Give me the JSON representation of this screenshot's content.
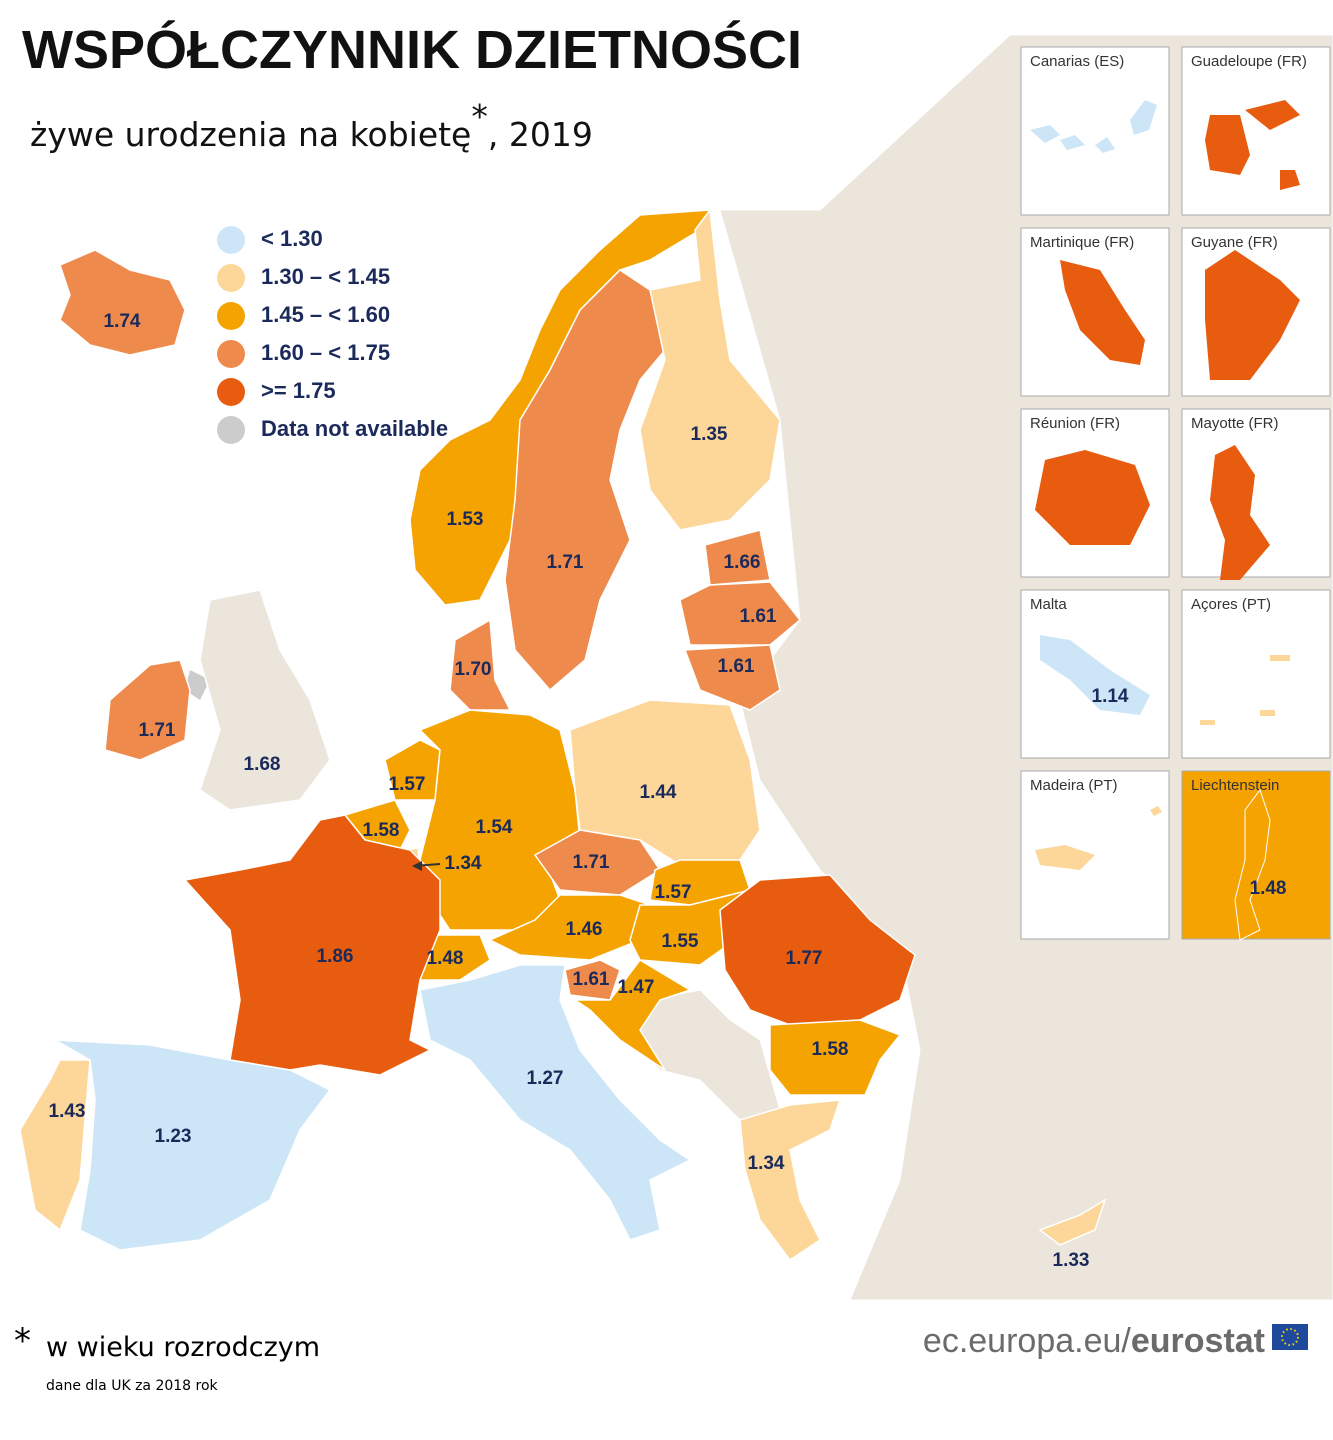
{
  "header": {
    "title": "WSPÓŁCZYNNIK DZIETNOŚCI",
    "subtitle": "żywe urodzenia na kobietę",
    "subtitle_mark": "*",
    "subtitle_year": ", 2019"
  },
  "legend": [
    {
      "label": "< 1.30",
      "color": "#cde6f7"
    },
    {
      "label": "1.30 – < 1.45",
      "color": "#fdd79a"
    },
    {
      "label": "1.45 – < 1.60",
      "color": "#f4a300"
    },
    {
      "label": "1.60 – < 1.75",
      "color": "#ee8a4c"
    },
    {
      "label": ">= 1.75",
      "color": "#e85c0f"
    },
    {
      "label": "Data not available",
      "color": "#cccccc"
    }
  ],
  "regions": [
    {
      "value": 1.74,
      "color": "#ee8a4c"
    },
    {
      "value": 1.53,
      "color": "#f4a300"
    },
    {
      "value": 1.71,
      "color": "#ee8a4c"
    },
    {
      "value": 1.35,
      "color": "#fdd79a"
    },
    {
      "value": 1.66,
      "color": "#ee8a4c"
    },
    {
      "value": 1.61,
      "color": "#ee8a4c"
    },
    {
      "value": 1.61,
      "color": "#ee8a4c"
    },
    {
      "value": 1.7,
      "value_label": "1.70",
      "color": "#ee8a4c"
    },
    {
      "value": 1.71,
      "color": "#ee8a4c"
    },
    {
      "value": 1.68,
      "color": "#ebe5dc"
    },
    {
      "value": 1.57,
      "color": "#f4a300"
    },
    {
      "value": 1.58,
      "color": "#f4a300"
    },
    {
      "value": 1.34,
      "color": "#fdd79a"
    },
    {
      "value": 1.54,
      "color": "#f4a300"
    },
    {
      "value": 1.44,
      "color": "#fdd79a"
    },
    {
      "value": 1.71,
      "color": "#ee8a4c"
    },
    {
      "value": 1.57,
      "color": "#f4a300"
    },
    {
      "value": 1.46,
      "color": "#f4a300"
    },
    {
      "value": 1.55,
      "color": "#f4a300"
    },
    {
      "value": 1.77,
      "color": "#e85c0f"
    },
    {
      "value": 1.48,
      "color": "#f4a300"
    },
    {
      "value": 1.61,
      "color": "#ee8a4c"
    },
    {
      "value": 1.47,
      "color": "#f4a300"
    },
    {
      "value": 1.58,
      "color": "#f4a300"
    },
    {
      "value": 1.86,
      "color": "#e85c0f"
    },
    {
      "value": 1.27,
      "color": "#cde6f7"
    },
    {
      "value": 1.43,
      "color": "#fdd79a"
    },
    {
      "value": 1.23,
      "color": "#cde6f7"
    },
    {
      "value": 1.34,
      "color": "#fdd79a"
    },
    {
      "value": 1.33,
      "color": "#fdd79a"
    }
  ],
  "insets": [
    {
      "name": "Canarias (ES)",
      "color": "#cde6f7"
    },
    {
      "name": "Guadeloupe (FR)",
      "color": "#e85c0f"
    },
    {
      "name": "Martinique (FR)",
      "color": "#e85c0f"
    },
    {
      "name": "Guyane (FR)",
      "color": "#e85c0f"
    },
    {
      "name": "Réunion (FR)",
      "color": "#e85c0f"
    },
    {
      "name": "Mayotte (FR)",
      "color": "#e85c0f"
    },
    {
      "name": "Malta",
      "color": "#cde6f7",
      "value": 1.14
    },
    {
      "name": "Açores (PT)",
      "color": "#fdd79a"
    },
    {
      "name": "Madeira (PT)",
      "color": "#fdd79a"
    },
    {
      "name": "Liechtenstein",
      "color": "#f4a300",
      "value": 1.48
    }
  ],
  "footnote": {
    "mark": "*",
    "text": "w wieku rozrodczym",
    "note": "dane dla UK za 2018 rok"
  },
  "source": {
    "site": "ec.europa.eu/",
    "brand": "eurostat"
  }
}
